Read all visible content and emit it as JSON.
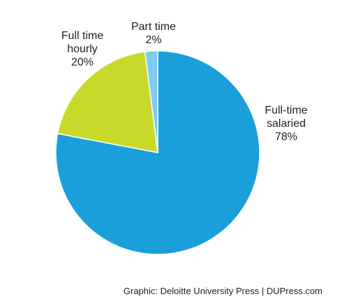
{
  "chart_data": {
    "type": "pie",
    "categories": [
      "Full-time salaried",
      "Full time hourly",
      "Part time"
    ],
    "values": [
      78,
      20,
      2
    ],
    "value_labels": [
      "78%",
      "20%",
      "2%"
    ],
    "colors": [
      "#1a9fdb",
      "#c8d92b",
      "#7ecbee"
    ],
    "source": "Graphic: Deloitte University Press | DUPress.com"
  }
}
